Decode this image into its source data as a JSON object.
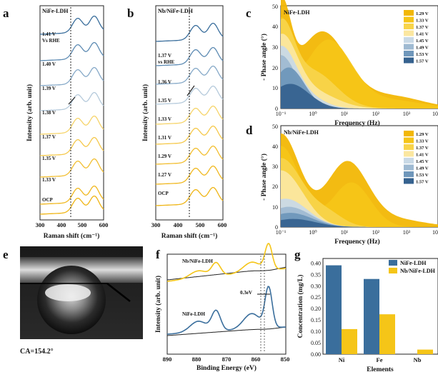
{
  "panels": {
    "a": "a",
    "b": "b",
    "c": "c",
    "d": "d",
    "e": "e",
    "f": "f",
    "g": "g"
  },
  "colors": {
    "nife_blue": "#3a6e9c",
    "nb_yellow": "#f5c518",
    "phase_palette": [
      "#f2b705",
      "#f5c518",
      "#f8d44a",
      "#fbe7a0",
      "#c9d9e6",
      "#9fbad2",
      "#6f97bb",
      "#36628f"
    ]
  },
  "raman_a": {
    "title": "NiFe-LDH",
    "ylabel": "Intensity (arb. unit)",
    "xlabel": "Raman shift (cm⁻¹)",
    "xticks": [
      "300",
      "400",
      "500",
      "600"
    ],
    "labels": [
      "1.41 V",
      "Vs RHE",
      "1.40 V",
      "1.39 V",
      "1.38 V",
      "1.37 V",
      "1.35 V",
      "1.33 V",
      "OCP"
    ]
  },
  "raman_b": {
    "title": "Nb/NiFe-LDH",
    "ylabel": "Intensity (arb. unit)",
    "xlabel": "Raman shift (cm⁻¹)",
    "xticks": [
      "300",
      "400",
      "500",
      "600"
    ],
    "labels": [
      "1.37 V",
      "vs RHE",
      "1.36 V",
      "1.35 V",
      "1.33 V",
      "1.31 V",
      "1.29 V",
      "1.27 V",
      "OCP"
    ]
  },
  "bode_c": {
    "title": "NiFe-LDH",
    "ylabel": "- Phase angle (°)",
    "xlabel": "Frequency (Hz)",
    "yticks": [
      "0",
      "10",
      "20",
      "30",
      "40",
      "50"
    ],
    "xticks": [
      "10⁻¹",
      "10⁰",
      "10¹",
      "10²",
      "10³",
      "10"
    ]
  },
  "bode_d": {
    "title": "Nb/NiFe-LDH",
    "ylabel": "- Phase angle (°)",
    "xlabel": "Frequency (Hz)",
    "yticks": [
      "0",
      "10",
      "20",
      "30",
      "40",
      "50"
    ],
    "xticks": [
      "10⁻¹",
      "10⁰",
      "10¹",
      "10²",
      "10³",
      "10"
    ]
  },
  "legend_voltages": [
    "1.29 V",
    "1.33 V",
    "1.37 V",
    "1.41 V",
    "1.45 V",
    "1.49 V",
    "1.53 V",
    "1.57 V"
  ],
  "contact_angle": {
    "label": "CA=154.2°"
  },
  "xps": {
    "ylabel": "Intensity (arb. unit)",
    "xlabel": "Binding Energy (eV)",
    "xticks": [
      "890",
      "880",
      "870",
      "860",
      "850"
    ],
    "label_top": "Nb/NiFe-LDH",
    "label_bottom": "NiFe-LDH",
    "shift": "0.3eV"
  },
  "chart_data": {
    "type": "bar",
    "ylabel": "Concentration (mg/L)",
    "xlabel": "Elements",
    "categories": [
      "Ni",
      "Fe",
      "Nb"
    ],
    "yticks": [
      "0.00",
      "0.05",
      "0.10",
      "0.15",
      "0.20",
      "0.25",
      "0.30",
      "0.35",
      "0.40"
    ],
    "ylim": [
      0,
      0.42
    ],
    "series": [
      {
        "name": "NiFe-LDH",
        "values": [
          0.39,
          0.33,
          0.0
        ]
      },
      {
        "name": "Nb/NiFe-LDH",
        "values": [
          0.11,
          0.175,
          0.02
        ]
      }
    ]
  }
}
